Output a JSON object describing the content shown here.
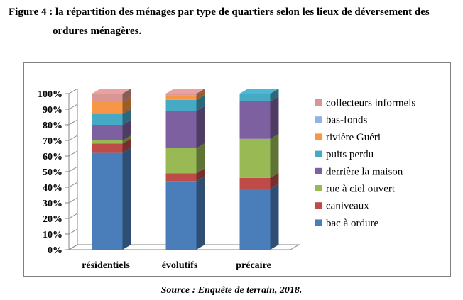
{
  "figure": {
    "title_line1": "Figure 4 : la répartition des ménages par type de quartiers selon les lieux de déversement des",
    "title_line2": "ordures ménagères.",
    "source": "Source : Enquête de terrain, 2018."
  },
  "chart_data": {
    "type": "bar",
    "stacked": true,
    "three_d": true,
    "title": "Figure 4 : la répartition des ménages par type de quartiers selon les lieux de déversement des ordures ménagères.",
    "xlabel": "",
    "ylabel": "",
    "ylim": [
      0,
      100
    ],
    "y_ticks": [
      "0%",
      "10%",
      "20%",
      "30%",
      "40%",
      "50%",
      "60%",
      "70%",
      "80%",
      "90%",
      "100%"
    ],
    "categories": [
      "résidentiels",
      "évolutifs",
      "précaire"
    ],
    "legend_position": "right",
    "series": [
      {
        "name": "bac à ordure",
        "color": "#4A7EBB",
        "values": [
          62,
          44,
          39
        ]
      },
      {
        "name": "caniveaux",
        "color": "#BE4B48",
        "values": [
          6,
          5,
          7
        ]
      },
      {
        "name": "rue à ciel ouvert",
        "color": "#98B954",
        "values": [
          2,
          16,
          25
        ]
      },
      {
        "name": "derrière la maison",
        "color": "#7D60A0",
        "values": [
          10,
          24,
          24
        ]
      },
      {
        "name": "puits perdu",
        "color": "#46AAC5",
        "values": [
          7,
          7,
          5
        ]
      },
      {
        "name": "rivière Guéri",
        "color": "#F79646",
        "values": [
          8,
          3,
          0
        ]
      },
      {
        "name": "bas-fonds",
        "color": "#8FB4E3",
        "values": [
          0,
          0,
          0
        ]
      },
      {
        "name": "collecteurs informels",
        "color": "#D99694",
        "values": [
          5,
          1,
          0
        ]
      }
    ]
  }
}
